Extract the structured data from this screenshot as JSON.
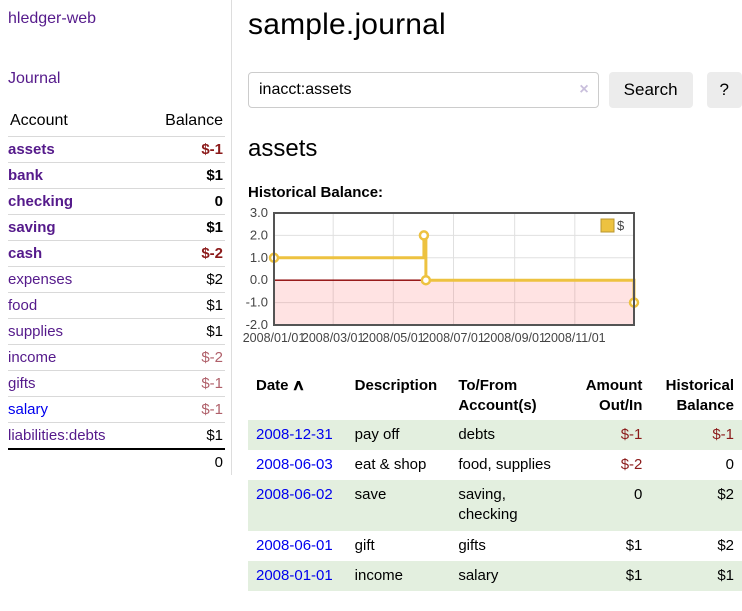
{
  "brand": "hledger-web",
  "nav": {
    "journal": "Journal"
  },
  "sidebar": {
    "columns": {
      "account": "Account",
      "balance": "Balance"
    },
    "accounts": [
      {
        "name": "assets",
        "depth": 1,
        "bold": true,
        "balance": "$-1",
        "balance_style": "neg-strong"
      },
      {
        "name": "bank",
        "depth": 2,
        "bold": true,
        "balance": "$1",
        "balance_style": "pos"
      },
      {
        "name": "checking",
        "depth": 3,
        "bold": true,
        "balance": "0",
        "balance_style": "pos"
      },
      {
        "name": "saving",
        "depth": 3,
        "bold": true,
        "balance": "$1",
        "balance_style": "pos"
      },
      {
        "name": "cash",
        "depth": 2,
        "bold": true,
        "balance": "$-2",
        "balance_style": "neg-strong"
      },
      {
        "name": "expenses",
        "depth": 1,
        "bold": false,
        "balance": "$2",
        "balance_style": "pos"
      },
      {
        "name": "food",
        "depth": 2,
        "bold": false,
        "balance": "$1",
        "balance_style": "pos"
      },
      {
        "name": "supplies",
        "depth": 2,
        "bold": false,
        "balance": "$1",
        "balance_style": "pos"
      },
      {
        "name": "income",
        "depth": 1,
        "bold": false,
        "balance": "$-2",
        "balance_style": "neg-soft"
      },
      {
        "name": "gifts",
        "depth": 2,
        "bold": false,
        "balance": "$-1",
        "balance_style": "neg-soft"
      },
      {
        "name": "salary",
        "depth": 2,
        "bold": false,
        "link_style": "unvisited",
        "balance": "$-1",
        "balance_style": "neg-soft"
      },
      {
        "name": "liabilities:debts",
        "depth": 1,
        "bold": false,
        "balance": "$1",
        "balance_style": "pos"
      }
    ],
    "total": "0"
  },
  "header": {
    "title": "sample.journal"
  },
  "search": {
    "value": "inacct:assets",
    "clear": "×",
    "submit": "Search",
    "help": "?"
  },
  "account_view": {
    "title": "assets",
    "chart_title": "Historical Balance:"
  },
  "chart_data": {
    "type": "line",
    "subtype": "step",
    "title": "Historical Balance of assets",
    "series": [
      {
        "name": "$",
        "color": "#edc240",
        "points": [
          [
            "2008-01-01",
            1
          ],
          [
            "2008-06-01",
            2
          ],
          [
            "2008-06-03",
            0
          ],
          [
            "2008-12-31",
            -1
          ]
        ]
      }
    ],
    "x_range": [
      "2008-01-01",
      "2008-12-31"
    ],
    "x_ticks": [
      "2008/01/01",
      "2008/03/01",
      "2008/05/01",
      "2008/07/01",
      "2008/09/01",
      "2008/11/01"
    ],
    "y_ticks": [
      3.0,
      2.0,
      1.0,
      0.0,
      -1.0,
      -2.0
    ],
    "ylim": [
      -2,
      3
    ],
    "grid": true,
    "legend": {
      "label": "$",
      "position": "top-right"
    },
    "negative_region_color": "rgba(255,80,80,0.16)",
    "zero_line_color": "#8b0000",
    "border_color": "#545454",
    "grid_color": "#e0e0e0",
    "tick_color": "#444444"
  },
  "register": {
    "columns": [
      {
        "label": "Date",
        "sort_icon": "∧",
        "align": "left"
      },
      {
        "label": "Description",
        "align": "left"
      },
      {
        "label": "To/From Account(s)",
        "align": "left"
      },
      {
        "label": "Amount Out/In",
        "align": "right"
      },
      {
        "label": "Historical Balance",
        "align": "right"
      }
    ],
    "rows": [
      {
        "date": "2008-12-31",
        "description": "pay off",
        "accounts": "debts",
        "amount": "$-1",
        "amount_negative": true,
        "balance": "$-1",
        "balance_negative": true
      },
      {
        "date": "2008-06-03",
        "description": "eat & shop",
        "accounts": "food, supplies",
        "amount": "$-2",
        "amount_negative": true,
        "balance": "0",
        "balance_negative": false
      },
      {
        "date": "2008-06-02",
        "description": "save",
        "accounts": "saving, checking",
        "amount": "0",
        "amount_negative": false,
        "balance": "$2",
        "balance_negative": false
      },
      {
        "date": "2008-06-01",
        "description": "gift",
        "accounts": "gifts",
        "amount": "$1",
        "amount_negative": false,
        "balance": "$2",
        "balance_negative": false
      },
      {
        "date": "2008-01-01",
        "description": "income",
        "accounts": "salary",
        "amount": "$1",
        "amount_negative": false,
        "balance": "$1",
        "balance_negative": false
      }
    ]
  },
  "colors": {
    "link_purple": "#551a8b",
    "link_blue": "#0000ee",
    "negative_strong": "#8b1a1a",
    "negative_soft": "#b0606a",
    "row_stripe_green": "#e3efdf",
    "series_yellow": "#edc240"
  }
}
